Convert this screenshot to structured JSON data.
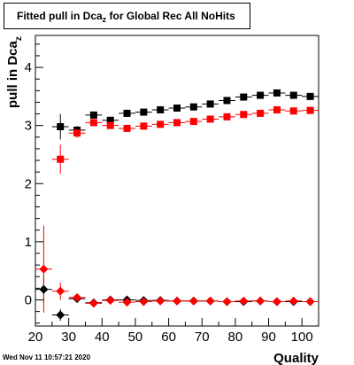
{
  "chart_data": {
    "type": "scatter",
    "title_main": "Fitted pull in Dca",
    "title_sub": "z",
    "title_rest": " for Global Rec All NoHits",
    "xlabel": "Quality",
    "ylabel_main": "pull in Dca",
    "ylabel_sub": "z",
    "xlim": [
      20,
      105
    ],
    "ylim": [
      -0.45,
      4.55
    ],
    "x_ticks": [
      20,
      30,
      40,
      50,
      60,
      70,
      80,
      90,
      100
    ],
    "y_ticks": [
      0,
      1,
      2,
      3,
      4
    ],
    "grid": false,
    "series": [
      {
        "marker": "square",
        "color": "#000000",
        "points": [
          {
            "x": 27.5,
            "y": 2.98,
            "ex": 2.5,
            "ey": 0.22
          },
          {
            "x": 32.5,
            "y": 2.92,
            "ex": 2.5,
            "ey": 0.07
          },
          {
            "x": 37.5,
            "y": 3.18,
            "ex": 2.5,
            "ey": 0.06
          },
          {
            "x": 42.5,
            "y": 3.09,
            "ex": 2.5,
            "ey": 0.05
          },
          {
            "x": 47.5,
            "y": 3.21,
            "ex": 2.5,
            "ey": 0.05
          },
          {
            "x": 52.5,
            "y": 3.23,
            "ex": 2.5,
            "ey": 0.04
          },
          {
            "x": 57.5,
            "y": 3.27,
            "ex": 2.5,
            "ey": 0.04
          },
          {
            "x": 62.5,
            "y": 3.3,
            "ex": 2.5,
            "ey": 0.04
          },
          {
            "x": 67.5,
            "y": 3.32,
            "ex": 2.5,
            "ey": 0.04
          },
          {
            "x": 72.5,
            "y": 3.37,
            "ex": 2.5,
            "ey": 0.04
          },
          {
            "x": 77.5,
            "y": 3.43,
            "ex": 2.5,
            "ey": 0.04
          },
          {
            "x": 82.5,
            "y": 3.49,
            "ex": 2.5,
            "ey": 0.04
          },
          {
            "x": 87.5,
            "y": 3.52,
            "ex": 2.5,
            "ey": 0.04
          },
          {
            "x": 92.5,
            "y": 3.56,
            "ex": 2.5,
            "ey": 0.04
          },
          {
            "x": 97.5,
            "y": 3.52,
            "ex": 2.5,
            "ey": 0.04
          },
          {
            "x": 102.5,
            "y": 3.5,
            "ex": 2.5,
            "ey": 0.04
          }
        ]
      },
      {
        "marker": "square",
        "color": "#ff0000",
        "points": [
          {
            "x": 27.5,
            "y": 2.42,
            "ex": 2.5,
            "ey": 0.25
          },
          {
            "x": 32.5,
            "y": 2.87,
            "ex": 2.5,
            "ey": 0.08
          },
          {
            "x": 37.5,
            "y": 3.05,
            "ex": 2.5,
            "ey": 0.06
          },
          {
            "x": 42.5,
            "y": 3.0,
            "ex": 2.5,
            "ey": 0.05
          },
          {
            "x": 47.5,
            "y": 2.95,
            "ex": 2.5,
            "ey": 0.05
          },
          {
            "x": 52.5,
            "y": 2.99,
            "ex": 2.5,
            "ey": 0.04
          },
          {
            "x": 57.5,
            "y": 3.02,
            "ex": 2.5,
            "ey": 0.04
          },
          {
            "x": 62.5,
            "y": 3.05,
            "ex": 2.5,
            "ey": 0.04
          },
          {
            "x": 67.5,
            "y": 3.07,
            "ex": 2.5,
            "ey": 0.04
          },
          {
            "x": 72.5,
            "y": 3.11,
            "ex": 2.5,
            "ey": 0.04
          },
          {
            "x": 77.5,
            "y": 3.15,
            "ex": 2.5,
            "ey": 0.04
          },
          {
            "x": 82.5,
            "y": 3.19,
            "ex": 2.5,
            "ey": 0.04
          },
          {
            "x": 87.5,
            "y": 3.21,
            "ex": 2.5,
            "ey": 0.04
          },
          {
            "x": 92.5,
            "y": 3.27,
            "ex": 2.5,
            "ey": 0.04
          },
          {
            "x": 97.5,
            "y": 3.25,
            "ex": 2.5,
            "ey": 0.04
          },
          {
            "x": 102.5,
            "y": 3.26,
            "ex": 2.5,
            "ey": 0.04
          }
        ]
      },
      {
        "marker": "diamond",
        "color": "#000000",
        "points": [
          {
            "x": 22.5,
            "y": 0.18,
            "ex": 2.5,
            "ey": 0.22
          },
          {
            "x": 27.5,
            "y": -0.26,
            "ex": 2.5,
            "ey": 0.1
          },
          {
            "x": 32.5,
            "y": 0.02,
            "ex": 2.5,
            "ey": 0.03
          },
          {
            "x": 37.5,
            "y": -0.05,
            "ex": 2.5,
            "ey": 0.03
          },
          {
            "x": 42.5,
            "y": 0.0,
            "ex": 2.5,
            "ey": 0.03
          },
          {
            "x": 47.5,
            "y": 0.0,
            "ex": 2.5,
            "ey": 0.03
          },
          {
            "x": 52.5,
            "y": -0.01,
            "ex": 2.5,
            "ey": 0.03
          },
          {
            "x": 57.5,
            "y": -0.01,
            "ex": 2.5,
            "ey": 0.02
          },
          {
            "x": 62.5,
            "y": -0.02,
            "ex": 2.5,
            "ey": 0.02
          },
          {
            "x": 67.5,
            "y": -0.02,
            "ex": 2.5,
            "ey": 0.02
          },
          {
            "x": 72.5,
            "y": -0.02,
            "ex": 2.5,
            "ey": 0.02
          },
          {
            "x": 77.5,
            "y": -0.03,
            "ex": 2.5,
            "ey": 0.02
          },
          {
            "x": 82.5,
            "y": -0.03,
            "ex": 2.5,
            "ey": 0.02
          },
          {
            "x": 87.5,
            "y": -0.02,
            "ex": 2.5,
            "ey": 0.02
          },
          {
            "x": 92.5,
            "y": -0.03,
            "ex": 2.5,
            "ey": 0.02
          },
          {
            "x": 97.5,
            "y": -0.03,
            "ex": 2.5,
            "ey": 0.02
          },
          {
            "x": 102.5,
            "y": -0.03,
            "ex": 2.5,
            "ey": 0.02
          }
        ]
      },
      {
        "marker": "diamond",
        "color": "#ff0000",
        "points": [
          {
            "x": 22.5,
            "y": 0.53,
            "ex": 2.5,
            "ey": 0.75
          },
          {
            "x": 27.5,
            "y": 0.15,
            "ex": 2.5,
            "ey": 0.15
          },
          {
            "x": 32.5,
            "y": 0.04,
            "ex": 2.5,
            "ey": 0.05
          },
          {
            "x": 37.5,
            "y": -0.06,
            "ex": 2.5,
            "ey": 0.03
          },
          {
            "x": 42.5,
            "y": -0.01,
            "ex": 2.5,
            "ey": 0.03
          },
          {
            "x": 47.5,
            "y": -0.04,
            "ex": 2.5,
            "ey": 0.03
          },
          {
            "x": 52.5,
            "y": -0.03,
            "ex": 2.5,
            "ey": 0.03
          },
          {
            "x": 57.5,
            "y": -0.02,
            "ex": 2.5,
            "ey": 0.02
          },
          {
            "x": 62.5,
            "y": -0.02,
            "ex": 2.5,
            "ey": 0.02
          },
          {
            "x": 67.5,
            "y": -0.02,
            "ex": 2.5,
            "ey": 0.02
          },
          {
            "x": 72.5,
            "y": -0.02,
            "ex": 2.5,
            "ey": 0.02
          },
          {
            "x": 77.5,
            "y": -0.03,
            "ex": 2.5,
            "ey": 0.02
          },
          {
            "x": 82.5,
            "y": -0.02,
            "ex": 2.5,
            "ey": 0.02
          },
          {
            "x": 87.5,
            "y": -0.02,
            "ex": 2.5,
            "ey": 0.02
          },
          {
            "x": 92.5,
            "y": -0.03,
            "ex": 2.5,
            "ey": 0.02
          },
          {
            "x": 97.5,
            "y": -0.02,
            "ex": 2.5,
            "ey": 0.02
          },
          {
            "x": 102.5,
            "y": -0.03,
            "ex": 2.5,
            "ey": 0.02
          }
        ]
      }
    ]
  },
  "footer": {
    "timestamp": "Wed Nov 11 10:57:21 2020"
  }
}
